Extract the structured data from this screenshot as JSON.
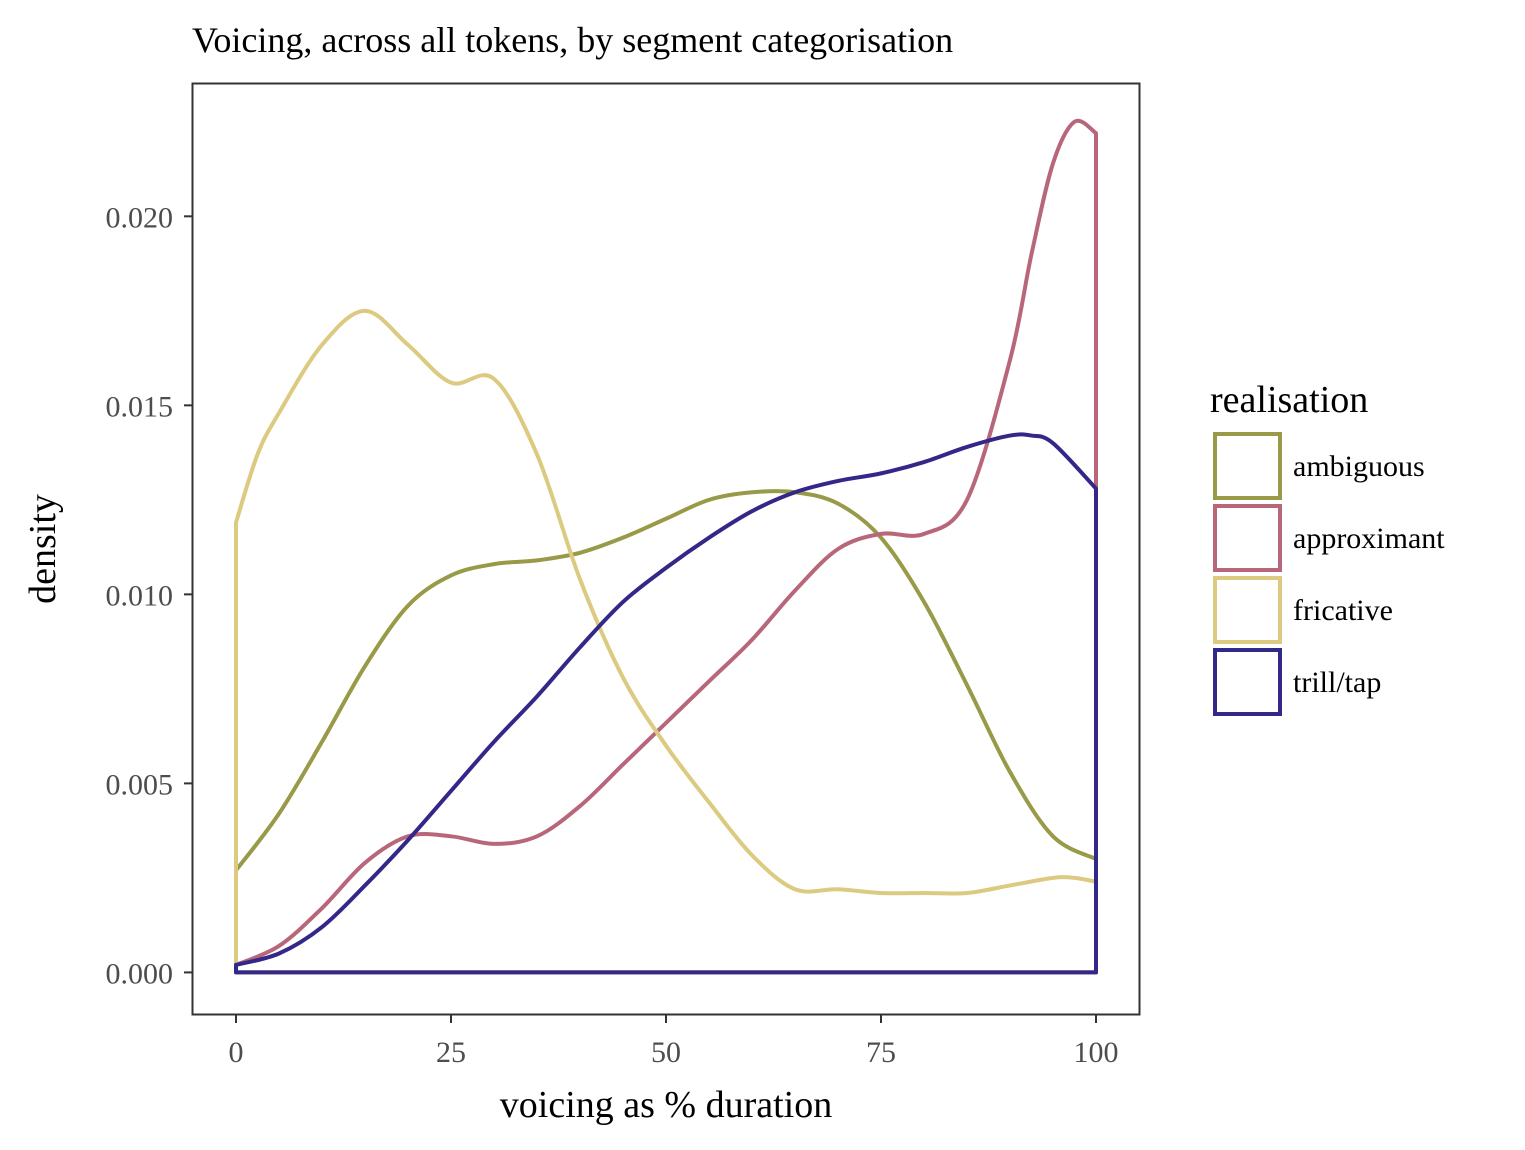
{
  "chart_data": {
    "type": "area",
    "title": "Voicing, across all tokens, by segment categorisation",
    "xlabel": "voicing as % duration",
    "ylabel": "density",
    "xlim": [
      -5,
      105
    ],
    "ylim": [
      -0.0011,
      0.0235
    ],
    "x_ticks": [
      0,
      25,
      50,
      75,
      100
    ],
    "x_tick_labels": [
      "0",
      "25",
      "50",
      "75",
      "100"
    ],
    "y_ticks": [
      0,
      0.005,
      0.01,
      0.015,
      0.02
    ],
    "y_tick_labels": [
      "0.000",
      "0.005",
      "0.010",
      "0.015",
      "0.020"
    ],
    "grid": false,
    "legend": {
      "title": "realisation",
      "position": "right"
    },
    "series": [
      {
        "name": "ambiguous",
        "color": "#999a48",
        "x": [
          0,
          5,
          10,
          15,
          20,
          25,
          30,
          35,
          40,
          45,
          50,
          55,
          60,
          65,
          70,
          75,
          80,
          85,
          90,
          95,
          100
        ],
        "y": [
          0.0027,
          0.0042,
          0.0061,
          0.0081,
          0.0097,
          0.0105,
          0.0108,
          0.0109,
          0.0111,
          0.0115,
          0.012,
          0.0125,
          0.0127,
          0.0127,
          0.0124,
          0.0115,
          0.0098,
          0.0076,
          0.0053,
          0.0036,
          0.003
        ]
      },
      {
        "name": "approximant",
        "color": "#b8677b",
        "x": [
          0,
          5,
          10,
          15,
          20,
          25,
          30,
          35,
          40,
          45,
          50,
          55,
          60,
          65,
          70,
          75,
          80,
          85,
          90,
          92.5,
          95,
          97.5,
          100
        ],
        "y": [
          0.0002,
          0.0007,
          0.0017,
          0.0029,
          0.0036,
          0.0036,
          0.0034,
          0.0036,
          0.0044,
          0.0055,
          0.0066,
          0.0077,
          0.0088,
          0.0101,
          0.0112,
          0.0116,
          0.0116,
          0.0125,
          0.0162,
          0.019,
          0.0214,
          0.0225,
          0.0222
        ]
      },
      {
        "name": "fricative",
        "color": "#dbca7f",
        "x": [
          0,
          2.5,
          5,
          10,
          15,
          20,
          25,
          30,
          35,
          40,
          45,
          50,
          55,
          60,
          65,
          70,
          75,
          80,
          85,
          90,
          95,
          97.5,
          100
        ],
        "y": [
          0.0119,
          0.0137,
          0.0148,
          0.0166,
          0.0175,
          0.0166,
          0.0156,
          0.0157,
          0.0137,
          0.0104,
          0.0078,
          0.006,
          0.0045,
          0.0031,
          0.0022,
          0.0022,
          0.0021,
          0.0021,
          0.0021,
          0.0023,
          0.0025,
          0.0025,
          0.0024
        ]
      },
      {
        "name": "trill/tap",
        "color": "#332788",
        "x": [
          0,
          5,
          10,
          15,
          20,
          25,
          30,
          35,
          40,
          45,
          50,
          55,
          60,
          65,
          70,
          75,
          80,
          85,
          90,
          92.5,
          95,
          100
        ],
        "y": [
          0.0002,
          0.0005,
          0.0012,
          0.0023,
          0.0035,
          0.0048,
          0.0061,
          0.0073,
          0.0086,
          0.0098,
          0.0107,
          0.0115,
          0.0122,
          0.0127,
          0.013,
          0.0132,
          0.0135,
          0.0139,
          0.0142,
          0.0142,
          0.014,
          0.0128
        ]
      }
    ]
  }
}
